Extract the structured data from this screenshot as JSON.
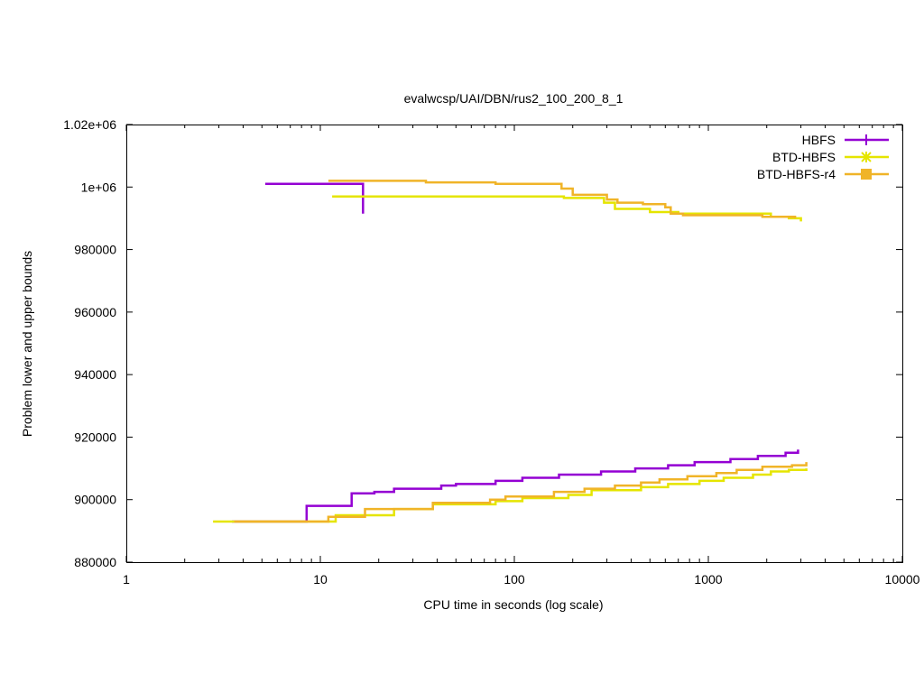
{
  "chart_data": {
    "type": "line",
    "title": "evalwcsp/UAI/DBN/rus2_100_200_8_1",
    "xlabel": "CPU time in seconds (log scale)",
    "ylabel": "Problem lower and upper bounds",
    "x_scale": "log",
    "xlim": [
      1,
      10000
    ],
    "ylim": [
      880000,
      1020000
    ],
    "x_ticks": [
      1,
      10,
      100,
      1000,
      10000
    ],
    "x_tick_labels": [
      "1",
      "10",
      "100",
      "1000",
      "10000"
    ],
    "y_ticks": [
      880000,
      900000,
      920000,
      940000,
      960000,
      980000,
      1000000,
      1020000
    ],
    "y_tick_labels": [
      "880000",
      "900000",
      "920000",
      "940000",
      "960000",
      "980000",
      "1e+06",
      "1.02e+06"
    ],
    "grid": false,
    "legend_position": "top-right",
    "series": [
      {
        "name": "HBFS",
        "color": "#9400d3",
        "marker": "plus",
        "upper": [
          [
            5.2,
            1001000
          ],
          [
            16.6,
            1001000
          ],
          [
            16.6,
            991500
          ]
        ],
        "lower": [
          [
            3.5,
            893000
          ],
          [
            8.5,
            893000
          ],
          [
            8.5,
            898000
          ],
          [
            14.5,
            898000
          ],
          [
            14.5,
            902000
          ],
          [
            19,
            902000
          ],
          [
            19,
            902500
          ],
          [
            24,
            902500
          ],
          [
            24,
            903500
          ],
          [
            42,
            903500
          ],
          [
            42,
            904500
          ],
          [
            50,
            904500
          ],
          [
            50,
            905000
          ],
          [
            80,
            905000
          ],
          [
            80,
            906000
          ],
          [
            110,
            906000
          ],
          [
            110,
            907000
          ],
          [
            170,
            907000
          ],
          [
            170,
            908000
          ],
          [
            280,
            908000
          ],
          [
            280,
            909000
          ],
          [
            420,
            909000
          ],
          [
            420,
            910000
          ],
          [
            620,
            910000
          ],
          [
            620,
            911000
          ],
          [
            850,
            911000
          ],
          [
            850,
            912000
          ],
          [
            1300,
            912000
          ],
          [
            1300,
            913000
          ],
          [
            1800,
            913000
          ],
          [
            1800,
            914000
          ],
          [
            2500,
            914000
          ],
          [
            2500,
            915000
          ],
          [
            2900,
            915000
          ],
          [
            2900,
            916000
          ]
        ]
      },
      {
        "name": "BTD-HBFS",
        "color": "#e5e500",
        "marker": "star",
        "upper": [
          [
            11.5,
            997000
          ],
          [
            180,
            997000
          ],
          [
            180,
            996500
          ],
          [
            290,
            996500
          ],
          [
            290,
            995000
          ],
          [
            330,
            995000
          ],
          [
            330,
            993000
          ],
          [
            500,
            993000
          ],
          [
            500,
            992000
          ],
          [
            700,
            992000
          ],
          [
            700,
            991500
          ],
          [
            2100,
            991500
          ],
          [
            2100,
            990500
          ],
          [
            2600,
            990500
          ],
          [
            2600,
            990000
          ],
          [
            3000,
            990000
          ],
          [
            3000,
            989000
          ]
        ],
        "lower": [
          [
            2.8,
            893000
          ],
          [
            12,
            893000
          ],
          [
            12,
            895000
          ],
          [
            24,
            895000
          ],
          [
            24,
            897000
          ],
          [
            38,
            897000
          ],
          [
            38,
            898500
          ],
          [
            80,
            898500
          ],
          [
            80,
            899500
          ],
          [
            110,
            899500
          ],
          [
            110,
            900500
          ],
          [
            190,
            900500
          ],
          [
            190,
            901500
          ],
          [
            250,
            901500
          ],
          [
            250,
            903000
          ],
          [
            450,
            903000
          ],
          [
            450,
            904000
          ],
          [
            620,
            904000
          ],
          [
            620,
            905000
          ],
          [
            900,
            905000
          ],
          [
            900,
            906000
          ],
          [
            1200,
            906000
          ],
          [
            1200,
            907000
          ],
          [
            1700,
            907000
          ],
          [
            1700,
            908000
          ],
          [
            2100,
            908000
          ],
          [
            2100,
            909000
          ],
          [
            2600,
            909000
          ],
          [
            2600,
            909500
          ],
          [
            3200,
            909500
          ],
          [
            3200,
            910000
          ]
        ]
      },
      {
        "name": "BTD-HBFS-r4",
        "color": "#f0b428",
        "marker": "square",
        "upper": [
          [
            11,
            1002000
          ],
          [
            35,
            1002000
          ],
          [
            35,
            1001500
          ],
          [
            80,
            1001500
          ],
          [
            80,
            1001000
          ],
          [
            175,
            1001000
          ],
          [
            175,
            999500
          ],
          [
            200,
            999500
          ],
          [
            200,
            997500
          ],
          [
            300,
            997500
          ],
          [
            300,
            996000
          ],
          [
            340,
            996000
          ],
          [
            340,
            995000
          ],
          [
            460,
            995000
          ],
          [
            460,
            994500
          ],
          [
            600,
            994500
          ],
          [
            600,
            993500
          ],
          [
            640,
            993500
          ],
          [
            640,
            991500
          ],
          [
            740,
            991500
          ],
          [
            740,
            991000
          ],
          [
            1900,
            991000
          ],
          [
            1900,
            990500
          ],
          [
            2800,
            990500
          ],
          [
            2800,
            990000
          ]
        ],
        "lower": [
          [
            3.6,
            893000
          ],
          [
            11,
            893000
          ],
          [
            11,
            894500
          ],
          [
            17,
            894500
          ],
          [
            17,
            897000
          ],
          [
            38,
            897000
          ],
          [
            38,
            899000
          ],
          [
            75,
            899000
          ],
          [
            75,
            900000
          ],
          [
            90,
            900000
          ],
          [
            90,
            901000
          ],
          [
            160,
            901000
          ],
          [
            160,
            902500
          ],
          [
            230,
            902500
          ],
          [
            230,
            903500
          ],
          [
            330,
            903500
          ],
          [
            330,
            904500
          ],
          [
            450,
            904500
          ],
          [
            450,
            905500
          ],
          [
            560,
            905500
          ],
          [
            560,
            906500
          ],
          [
            780,
            906500
          ],
          [
            780,
            907500
          ],
          [
            1100,
            907500
          ],
          [
            1100,
            908500
          ],
          [
            1400,
            908500
          ],
          [
            1400,
            909500
          ],
          [
            1900,
            909500
          ],
          [
            1900,
            910500
          ],
          [
            2700,
            910500
          ],
          [
            2700,
            911000
          ],
          [
            3200,
            911000
          ],
          [
            3200,
            912000
          ]
        ]
      }
    ]
  }
}
